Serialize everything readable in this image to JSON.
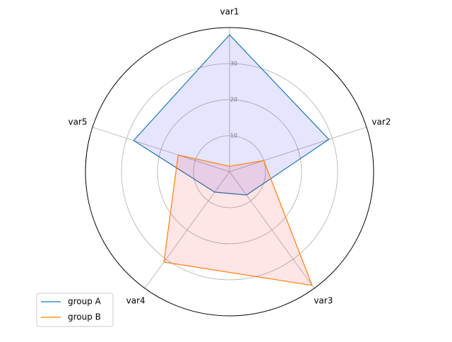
{
  "chart_data": {
    "type": "radar",
    "categories": [
      "var1",
      "var2",
      "var3",
      "var4",
      "var5"
    ],
    "series": [
      {
        "name": "group A",
        "color": "#1f77b4",
        "fill": "#0000ff",
        "values": [
          38,
          29,
          8,
          7,
          28
        ]
      },
      {
        "name": "group B",
        "color": "#ff7f0e",
        "fill": "#ff0000",
        "values": [
          1.5,
          10,
          39,
          31,
          15
        ]
      }
    ],
    "ylim": [
      0,
      40
    ],
    "yticks": [
      10,
      20,
      30
    ],
    "grid": true,
    "legend": "lower left"
  }
}
